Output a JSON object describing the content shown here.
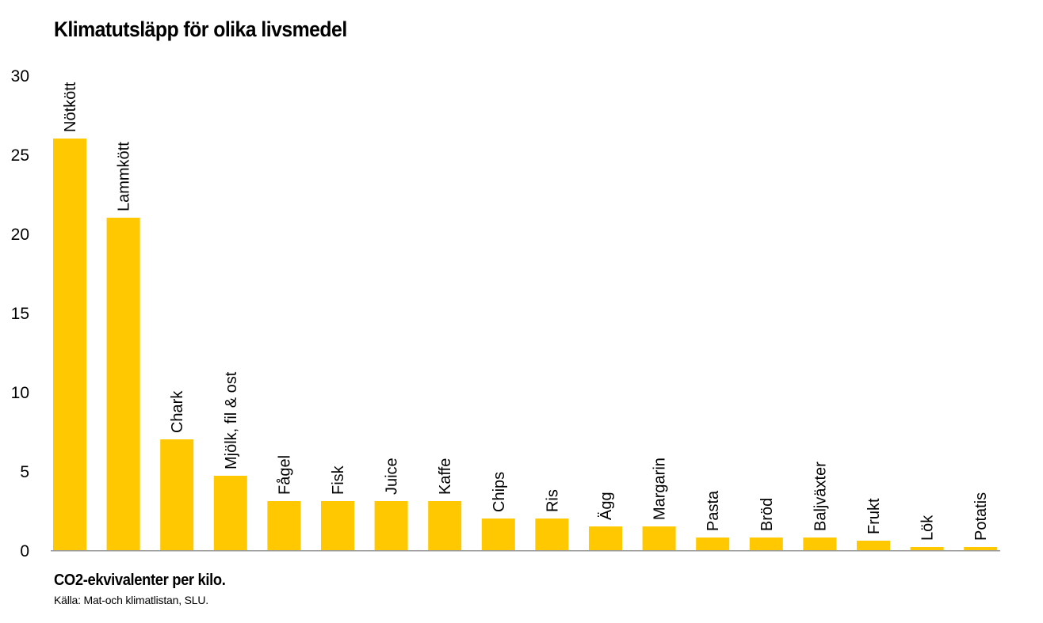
{
  "chart_data": {
    "type": "bar",
    "title": "Klimatutsläpp för olika livsmedel",
    "footnote": "CO2-ekvivalenter per kilo.",
    "source": "Källa: Mat-och klimatlistan, SLU.",
    "xlabel": "",
    "ylabel": "",
    "ylim": [
      0,
      30
    ],
    "yticks": [
      0,
      5,
      10,
      15,
      20,
      25,
      30
    ],
    "grid": false,
    "legend": "none",
    "bar_color": "#FFC800",
    "categories": [
      "Nötkött",
      "Lammkött",
      "Chark",
      "Mjölk, fil & ost",
      "Fågel",
      "Fisk",
      "Juice",
      "Kaffe",
      "Chips",
      "Ris",
      "Ägg",
      "Margarin",
      "Pasta",
      "Bröd",
      "Baljväxter",
      "Frukt",
      "Lök",
      "Potatis"
    ],
    "values": [
      26,
      21,
      7,
      4.7,
      3.1,
      3.1,
      3.1,
      3.1,
      2,
      2,
      1.5,
      1.5,
      0.8,
      0.8,
      0.8,
      0.6,
      0.2,
      0.2
    ]
  }
}
